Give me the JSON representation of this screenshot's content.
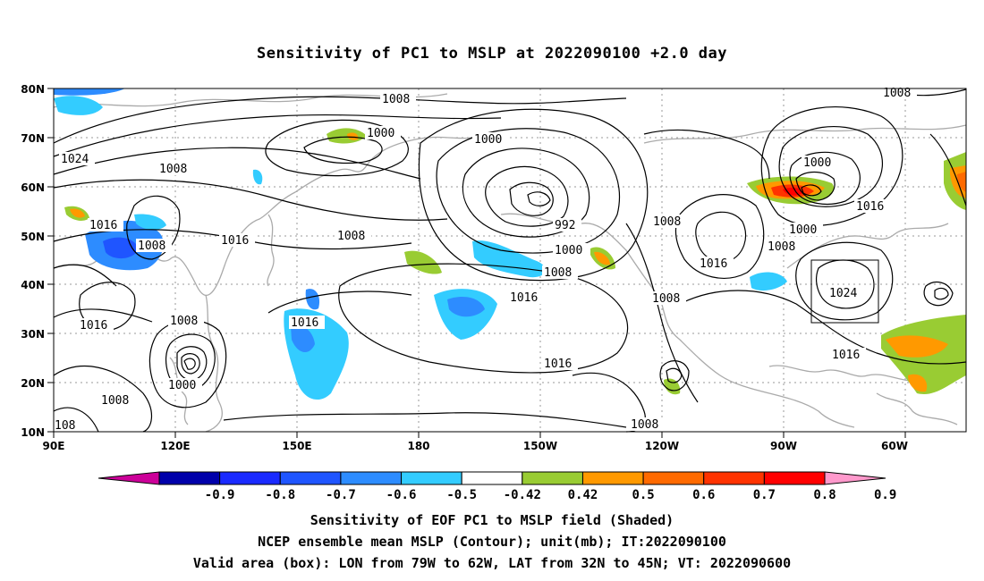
{
  "title": "Sensitivity of PC1 to MSLP at 2022090100 +2.0 day",
  "map": {
    "lon_labels": [
      "90E",
      "120E",
      "150E",
      "180",
      "150W",
      "120W",
      "90W",
      "60W"
    ],
    "lat_labels": [
      "80N",
      "70N",
      "60N",
      "50N",
      "40N",
      "30N",
      "20N",
      "10N"
    ],
    "valid_box": {
      "lon_from": "79W",
      "lon_to": "62W",
      "lat_from": "32N",
      "lat_to": "45N"
    },
    "contour_labels": [
      "1008",
      "1008",
      "1000",
      "1000",
      "1024",
      "1008",
      "1016",
      "1008",
      "1016",
      "992",
      "1000",
      "1008",
      "1008",
      "1016",
      "1016",
      "1008",
      "1016",
      "1016",
      "1008",
      "1016",
      "1008",
      "1000",
      "1008",
      "1016",
      "1000",
      "1008",
      "1024",
      "1016",
      "1008",
      "1000",
      "108"
    ]
  },
  "colorbar": {
    "labels": [
      "-0.9",
      "-0.8",
      "-0.7",
      "-0.6",
      "-0.5",
      "-0.42",
      "0.42",
      "0.5",
      "0.6",
      "0.7",
      "0.8",
      "0.9"
    ],
    "colors": [
      "#cc0099",
      "#0000aa",
      "#1a2aff",
      "#1f55ff",
      "#2d8cff",
      "#33ccff",
      "#ffffff",
      "#99cc33",
      "#ff9900",
      "#ff6a00",
      "#ff3300",
      "#ff0000",
      "#ff99cc"
    ]
  },
  "captions": [
    "Sensitivity of EOF PC1 to MSLP field (Shaded)",
    "NCEP ensemble mean MSLP (Contour); unit(mb); IT:2022090100",
    "Valid area (box): LON from 79W to 62W, LAT from 32N to 45N; VT: 2022090600"
  ]
}
